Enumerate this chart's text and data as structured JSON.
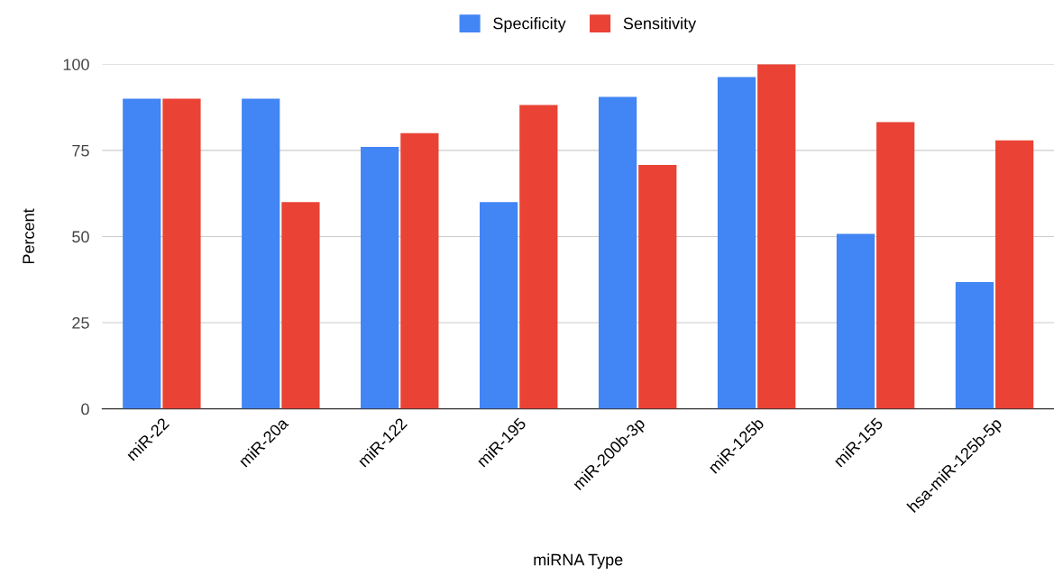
{
  "chart_data": {
    "type": "bar",
    "xlabel": "miRNA Type",
    "ylabel": "Percent",
    "categories": [
      "miR-22",
      "miR-20a",
      "miR-122",
      "miR-195",
      "miR-200b-3p",
      "miR-125b",
      "miR-155",
      "hsa-miR-125b-5p"
    ],
    "series": [
      {
        "name": "Specificity",
        "color": "#4285f4",
        "values": [
          90,
          90,
          76,
          60,
          90.5,
          96.3,
          50.8,
          36.8
        ]
      },
      {
        "name": "Sensitivity",
        "color": "#ea4335",
        "values": [
          90,
          60,
          80,
          88.2,
          70.8,
          100,
          83.2,
          77.9
        ]
      }
    ],
    "ylim": [
      0,
      100
    ],
    "yticks": [
      0,
      25,
      50,
      75,
      100
    ],
    "grid": "y",
    "legend": "top"
  }
}
